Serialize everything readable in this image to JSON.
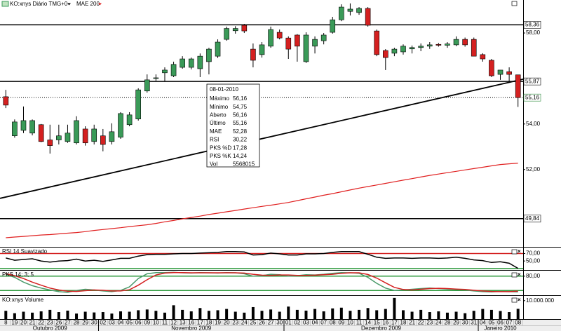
{
  "chart_data": [
    {
      "type": "candlestick",
      "series": [
        {
          "name": "KO:xnys Diário TMG+0",
          "up_color": "#3a9a58",
          "down_color": "#d42020",
          "open": [
            55.2,
            53.48,
            53.72,
            53.6,
            53.97,
            53.3,
            53.3,
            53.23,
            53.17,
            53.78,
            53.23,
            53.48,
            53.23,
            53.42,
            53.97,
            54.22,
            55.45,
            56.0,
            56.25,
            56.12,
            56.49,
            56.49,
            56.43,
            56.74,
            56.98,
            57.72,
            58.1,
            58.34,
            57.29,
            57.05,
            57.42,
            58.03,
            57.78,
            57.91,
            56.74,
            57.42,
            57.66,
            58.03,
            58.58,
            58.95,
            58.9,
            59.08,
            58.09,
            57.23,
            57.11,
            57.17,
            57.3,
            57.36,
            57.42,
            57.5,
            57.46,
            57.48,
            57.72,
            57.72,
            57.05,
            56.8,
            56.18,
            56.3,
            56.16
          ],
          "high": [
            55.5,
            54.2,
            54.77,
            54.2,
            54.0,
            53.97,
            53.97,
            53.97,
            54.34,
            53.9,
            53.97,
            53.78,
            54.03,
            54.52,
            54.52,
            55.57,
            56.18,
            56.18,
            56.49,
            56.74,
            56.98,
            56.92,
            57.1,
            57.35,
            57.72,
            58.28,
            58.3,
            58.4,
            57.54,
            57.6,
            58.28,
            58.15,
            57.85,
            57.95,
            58.03,
            57.85,
            58.0,
            58.71,
            59.26,
            59.3,
            59.14,
            59.14,
            58.15,
            57.29,
            57.35,
            57.5,
            57.45,
            57.54,
            57.6,
            57.56,
            57.6,
            57.85,
            57.8,
            57.8,
            57.11,
            56.86,
            56.37,
            56.49,
            56.16
          ],
          "low": [
            54.7,
            53.4,
            53.6,
            53.5,
            53.2,
            52.7,
            53.1,
            53.17,
            53.1,
            53.05,
            53.1,
            52.8,
            53.1,
            53.35,
            53.9,
            54.15,
            55.38,
            55.9,
            55.87,
            56.06,
            56.43,
            56.4,
            56.06,
            56.18,
            56.9,
            57.66,
            57.97,
            58.0,
            56.49,
            56.92,
            57.35,
            57.72,
            56.86,
            56.74,
            56.68,
            57.1,
            57.5,
            57.97,
            58.52,
            58.77,
            58.8,
            58.28,
            56.98,
            56.37,
            56.98,
            57.05,
            57.1,
            57.2,
            57.3,
            57.4,
            57.35,
            57.42,
            57.4,
            56.98,
            56.74,
            56.06,
            55.94,
            55.87,
            54.75
          ],
          "close": [
            54.83,
            54.09,
            54.15,
            54.15,
            53.23,
            53.05,
            53.48,
            53.6,
            54.15,
            53.17,
            53.78,
            53.1,
            53.66,
            54.46,
            54.4,
            55.5,
            55.94,
            56.03,
            56.37,
            56.62,
            56.86,
            56.86,
            56.98,
            57.29,
            57.6,
            58.2,
            58.2,
            58.09,
            56.8,
            57.48,
            58.15,
            57.78,
            57.29,
            57.42,
            57.91,
            57.72,
            57.91,
            58.58,
            59.14,
            59.05,
            59.08,
            58.34,
            57.05,
            56.92,
            57.29,
            57.42,
            57.36,
            57.42,
            57.48,
            57.46,
            57.52,
            57.72,
            57.48,
            56.98,
            56.86,
            56.12,
            56.37,
            56.18,
            55.16
          ]
        },
        {
          "name": "MAE 200",
          "color": "#e02020",
          "values": [
            49.0,
            49.03,
            49.06,
            49.09,
            49.12,
            49.14,
            49.17,
            49.2,
            49.23,
            49.27,
            49.32,
            49.36,
            49.4,
            49.44,
            49.49,
            49.53,
            49.57,
            49.63,
            49.7,
            49.76,
            49.83,
            49.89,
            49.95,
            50.02,
            50.08,
            50.14,
            50.2,
            50.26,
            50.32,
            50.38,
            50.43,
            50.49,
            50.55,
            50.63,
            50.71,
            50.79,
            50.87,
            50.94,
            51.02,
            51.1,
            51.18,
            51.25,
            51.32,
            51.39,
            51.46,
            51.53,
            51.6,
            51.67,
            51.74,
            51.8,
            51.86,
            51.92,
            51.98,
            52.04,
            52.1,
            52.16,
            52.22,
            52.25,
            52.28
          ]
        }
      ],
      "ylim": [
        48.6,
        59.45
      ],
      "yticks": [
        {
          "value": 58,
          "label": "58,00"
        },
        {
          "value": 54,
          "label": "54,00"
        },
        {
          "value": 52,
          "label": "52,00"
        }
      ],
      "levels": [
        {
          "value": 58.36,
          "label": "58,36"
        },
        {
          "value": 55.87,
          "label": "55,87"
        },
        {
          "value": 49.84,
          "label": "49,84"
        }
      ],
      "last_price": {
        "value": 55.16,
        "label": "55,16",
        "color": "#2e8b3e"
      },
      "trendline": {
        "start": 50.79,
        "end": 55.92
      },
      "tooltip": {
        "title": "08-01-2010",
        "rows": [
          {
            "name": "Máximo",
            "value": 56.16,
            "label": "56,16",
            "color": "#000000"
          },
          {
            "name": "Mínimo",
            "value": 54.75,
            "label": "54,75",
            "color": "#000000"
          },
          {
            "name": "Aberto",
            "value": 56.16,
            "label": "56,16",
            "color": "#000000"
          },
          {
            "name": "Último",
            "value": 55.16,
            "label": "55,16",
            "color": "#1e8a2e"
          },
          {
            "name": "MAE",
            "value": 52.28,
            "label": "52,28",
            "color": "#d42020"
          },
          {
            "name": "RSI",
            "value": 30.22,
            "label": "30,22",
            "color": "#000000"
          },
          {
            "name": "PKS %D",
            "value": 17.28,
            "label": "17,28",
            "color": "#d42020"
          },
          {
            "name": "PKS %K",
            "value": 14.24,
            "label": "14,24",
            "color": "#4a9a6a"
          },
          {
            "name": "Vol",
            "value": 5568015,
            "color": "#000000"
          }
        ]
      }
    },
    {
      "type": "line",
      "title": "RSI 14 Suavizado",
      "series": [
        {
          "color": "#000000",
          "values": [
            58,
            52,
            54,
            56,
            50,
            47,
            50,
            51,
            55,
            50,
            52,
            49,
            53,
            57,
            57,
            63,
            67,
            68,
            68,
            69,
            70,
            70,
            71,
            72,
            73,
            75,
            75,
            74,
            66,
            67,
            71,
            69,
            66,
            66,
            69,
            69,
            70,
            73,
            75,
            75,
            75,
            68,
            60,
            57,
            58,
            58,
            57,
            58,
            58,
            57,
            58,
            60,
            57,
            53,
            51,
            46,
            48,
            44,
            30.22
          ]
        }
      ],
      "ylim": [
        26,
        84
      ],
      "yticks": [
        {
          "value": 70,
          "label": "70,00"
        },
        {
          "value": 50,
          "label": "50,00"
        }
      ],
      "levels": [
        {
          "value": 70,
          "color": "#d42020"
        },
        {
          "value": 30,
          "color": "#2e9a3e"
        }
      ]
    },
    {
      "type": "line",
      "title": "PKS 14; 3; 5",
      "series": [
        {
          "color": "#4a9a6a",
          "values": [
            88,
            75,
            55,
            40,
            30,
            22,
            15,
            12,
            20,
            25,
            22,
            18,
            15,
            20,
            35,
            70,
            90,
            95,
            95,
            96,
            94,
            93,
            95,
            94,
            93,
            95,
            94,
            90,
            80,
            82,
            88,
            86,
            80,
            82,
            86,
            85,
            88,
            92,
            95,
            94,
            92,
            75,
            50,
            30,
            20,
            22,
            25,
            28,
            30,
            28,
            26,
            24,
            22,
            18,
            15,
            14,
            16,
            15,
            14.24
          ]
        },
        {
          "color": "#d42020",
          "values": [
            90,
            82,
            70,
            55,
            42,
            30,
            22,
            17,
            16,
            19,
            22,
            21,
            18,
            18,
            23,
            42,
            65,
            85,
            93,
            95,
            95,
            94,
            94,
            94,
            94,
            94,
            94,
            93,
            88,
            84,
            83,
            85,
            85,
            83,
            83,
            84,
            86,
            88,
            92,
            94,
            94,
            87,
            72,
            52,
            33,
            24,
            22,
            25,
            28,
            29,
            28,
            26,
            24,
            21,
            18,
            16,
            15,
            15,
            17.28
          ]
        }
      ],
      "ylim": [
        0,
        100
      ],
      "yticks": [
        {
          "value": 80,
          "label": "80,00"
        }
      ],
      "levels": [
        {
          "value": 80,
          "color": "#2e9a3e"
        },
        {
          "value": 20,
          "color": "#2e9a3e"
        }
      ]
    },
    {
      "type": "bar",
      "title": "KO:xnys Volume",
      "color": "#000000",
      "values": [
        4500000,
        3200000,
        4000000,
        3500000,
        4200000,
        5000000,
        3800000,
        4600000,
        3000000,
        4000000,
        3600000,
        3800000,
        3000000,
        4200000,
        4000000,
        4800000,
        5200000,
        4500000,
        3500000,
        7500000,
        5000000,
        4200000,
        6000000,
        4500000,
        4800000,
        5500000,
        4000000,
        3500000,
        6500000,
        4500000,
        5200000,
        4000000,
        6800000,
        5000000,
        4600000,
        5500000,
        4200000,
        5800000,
        6200000,
        4500000,
        5000000,
        6000000,
        4800000,
        5500000,
        11500000,
        4800000,
        4000000,
        5000000,
        3800000,
        4200000,
        3500000,
        4000000,
        3200000,
        4500000,
        5500000,
        5000000,
        4400000,
        3800000,
        5568015
      ],
      "ylim": [
        0,
        12200000
      ],
      "yticks": [
        {
          "value": 10000000,
          "label": "10.000.000"
        }
      ],
      "categories": [
        "8",
        "19",
        "20",
        "21",
        "22",
        "23",
        "26",
        "27",
        "28",
        "29",
        "30",
        "02",
        "03",
        "04",
        "05",
        "06",
        "09",
        "10",
        "11",
        "12",
        "13",
        "16",
        "17",
        "18",
        "19",
        "20",
        "23",
        "24",
        "25",
        "26",
        "27",
        "30",
        "01",
        "02",
        "03",
        "04",
        "07",
        "08",
        "09",
        "10",
        "11",
        "14",
        "15",
        "16",
        "17",
        "18",
        "21",
        "22",
        "23",
        "24",
        "28",
        "29",
        "30",
        "31",
        "04",
        "05",
        "06",
        "07",
        "08"
      ],
      "months": [
        "Outubro 2009",
        "Novembro 2009",
        "Dezembro 2009",
        "Janeiro 2010"
      ]
    }
  ]
}
